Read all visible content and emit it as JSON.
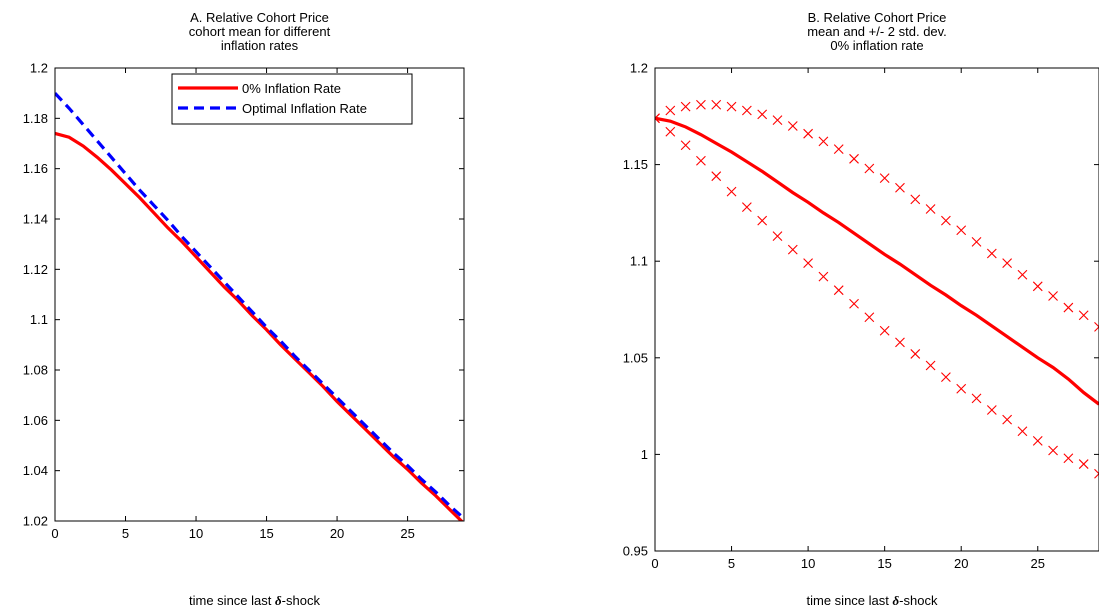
{
  "chart_data": [
    {
      "type": "line",
      "title": [
        "A. Relative Cohort Price",
        "cohort mean for different",
        "inflation rates"
      ],
      "xlabel_pre": "time since last ",
      "xlabel_sym": "δ",
      "xlabel_post": "-shock",
      "xlim": [
        0,
        29
      ],
      "ylim": [
        1.02,
        1.2
      ],
      "xticks": [
        0,
        5,
        10,
        15,
        20,
        25
      ],
      "yticks": [
        1.02,
        1.04,
        1.06,
        1.08,
        1.1,
        1.12,
        1.14,
        1.16,
        1.18,
        1.2
      ],
      "ytick_labels": [
        "1.02",
        "1.04",
        "1.06",
        "1.08",
        "1.1",
        "1.12",
        "1.14",
        "1.16",
        "1.18",
        "1.2"
      ],
      "grid": false,
      "legend_position": "top-center",
      "series": [
        {
          "name": "0% Inflation Rate",
          "color": "#ff0000",
          "style": "solid",
          "x": [
            0,
            1,
            2,
            3,
            4,
            5,
            6,
            7,
            8,
            9,
            10,
            11,
            12,
            13,
            14,
            15,
            16,
            17,
            18,
            19,
            20,
            21,
            22,
            23,
            24,
            25,
            26,
            27,
            28,
            29
          ],
          "y": [
            1.174,
            1.1725,
            1.169,
            1.1645,
            1.1595,
            1.154,
            1.1485,
            1.1425,
            1.1365,
            1.131,
            1.125,
            1.119,
            1.113,
            1.1075,
            1.1015,
            1.096,
            1.09,
            1.0845,
            1.079,
            1.0735,
            1.0675,
            1.062,
            1.0565,
            1.051,
            1.0455,
            1.0405,
            1.035,
            1.03,
            1.0245,
            1.019
          ]
        },
        {
          "name": "Optimal Inflation Rate",
          "color": "#0000ff",
          "style": "dashed",
          "x": [
            0,
            1,
            2,
            3,
            4,
            5,
            6,
            7,
            8,
            9,
            10,
            11,
            12,
            13,
            14,
            15,
            16,
            17,
            18,
            19,
            20,
            21,
            22,
            23,
            24,
            25,
            26,
            27,
            28,
            29
          ],
          "y": [
            1.19,
            1.184,
            1.1775,
            1.171,
            1.1645,
            1.158,
            1.1515,
            1.1455,
            1.1395,
            1.133,
            1.127,
            1.121,
            1.115,
            1.109,
            1.103,
            1.097,
            1.0915,
            1.0855,
            1.08,
            1.0745,
            1.069,
            1.0635,
            1.058,
            1.0525,
            1.047,
            1.042,
            1.0365,
            1.0315,
            1.026,
            1.021
          ]
        }
      ]
    },
    {
      "type": "line",
      "title": [
        "B. Relative Cohort Price",
        "mean and +/- 2 std. dev.",
        "0% inflation rate"
      ],
      "xlabel_pre": "time since last ",
      "xlabel_sym": "δ",
      "xlabel_post": "-shock",
      "xlim": [
        0,
        29
      ],
      "ylim": [
        0.95,
        1.2
      ],
      "xticks": [
        0,
        5,
        10,
        15,
        20,
        25
      ],
      "yticks": [
        0.95,
        1,
        1.05,
        1.1,
        1.15,
        1.2
      ],
      "ytick_labels": [
        "0.95",
        "1",
        "1.05",
        "1.1",
        "1.15",
        "1.2"
      ],
      "grid": false,
      "series": [
        {
          "color": "#ff0000",
          "style": "solid",
          "x": [
            0,
            1,
            2,
            3,
            4,
            5,
            6,
            7,
            8,
            9,
            10,
            11,
            12,
            13,
            14,
            15,
            16,
            17,
            18,
            19,
            20,
            21,
            22,
            23,
            24,
            25,
            26,
            27,
            28,
            29
          ],
          "y": [
            1.174,
            1.1725,
            1.1695,
            1.1655,
            1.161,
            1.1565,
            1.1515,
            1.1465,
            1.141,
            1.1355,
            1.1305,
            1.125,
            1.12,
            1.1145,
            1.109,
            1.1035,
            1.0985,
            1.093,
            1.0875,
            1.0825,
            1.077,
            1.072,
            1.0665,
            1.061,
            1.0555,
            1.05,
            1.045,
            1.039,
            1.032,
            1.026
          ]
        },
        {
          "color": "#ff0000",
          "style": "markers-x",
          "x": [
            0,
            1,
            2,
            3,
            4,
            5,
            6,
            7,
            8,
            9,
            10,
            11,
            12,
            13,
            14,
            15,
            16,
            17,
            18,
            19,
            20,
            21,
            22,
            23,
            24,
            25,
            26,
            27,
            28,
            29
          ],
          "y": [
            1.174,
            1.178,
            1.18,
            1.181,
            1.181,
            1.18,
            1.178,
            1.176,
            1.173,
            1.17,
            1.166,
            1.162,
            1.158,
            1.153,
            1.148,
            1.143,
            1.138,
            1.132,
            1.127,
            1.121,
            1.116,
            1.11,
            1.104,
            1.099,
            1.093,
            1.087,
            1.082,
            1.076,
            1.072,
            1.066
          ]
        },
        {
          "color": "#ff0000",
          "style": "markers-x",
          "x": [
            0,
            1,
            2,
            3,
            4,
            5,
            6,
            7,
            8,
            9,
            10,
            11,
            12,
            13,
            14,
            15,
            16,
            17,
            18,
            19,
            20,
            21,
            22,
            23,
            24,
            25,
            26,
            27,
            28,
            29
          ],
          "y": [
            1.174,
            1.167,
            1.16,
            1.152,
            1.144,
            1.136,
            1.128,
            1.121,
            1.113,
            1.106,
            1.099,
            1.092,
            1.085,
            1.078,
            1.071,
            1.064,
            1.058,
            1.052,
            1.046,
            1.04,
            1.034,
            1.029,
            1.023,
            1.018,
            1.012,
            1.007,
            1.002,
            0.998,
            0.995,
            0.99
          ]
        }
      ]
    }
  ]
}
